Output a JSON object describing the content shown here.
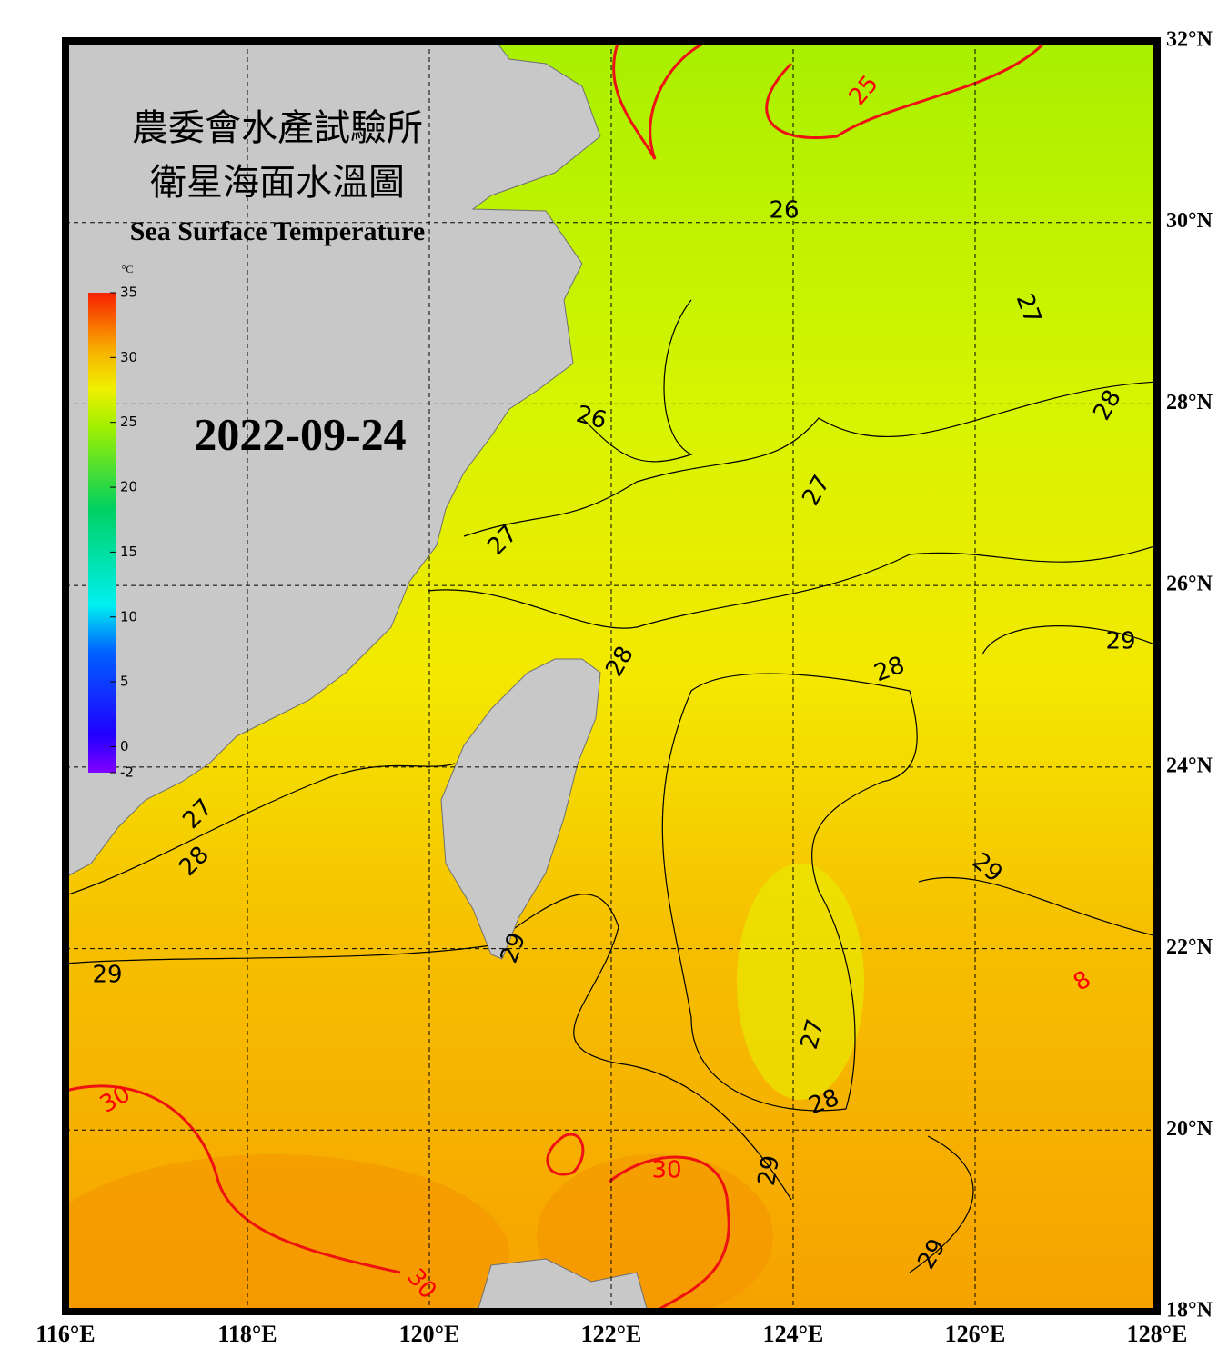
{
  "header": {
    "title_zh_1": "農委會水產試驗所",
    "title_zh_2": "衛星海面水溫圖",
    "title_en": "Sea Surface Temperature",
    "date": "2022-09-24"
  },
  "colorbar": {
    "unit": "°C",
    "lim": [
      -2,
      35
    ],
    "ticks": [
      35,
      30,
      25,
      20,
      15,
      10,
      5,
      0,
      -2
    ]
  },
  "map": {
    "xlim": [
      116,
      128
    ],
    "ylim": [
      18,
      32
    ],
    "xticks": [
      {
        "value": 116,
        "label": "116°E"
      },
      {
        "value": 118,
        "label": "118°E"
      },
      {
        "value": 120,
        "label": "120°E"
      },
      {
        "value": 122,
        "label": "122°E"
      },
      {
        "value": 124,
        "label": "124°E"
      },
      {
        "value": 126,
        "label": "126°E"
      },
      {
        "value": 128,
        "label": "128°E"
      }
    ],
    "yticks": [
      {
        "value": 32,
        "label": "32°N"
      },
      {
        "value": 30,
        "label": "30°N"
      },
      {
        "value": 28,
        "label": "28°N"
      },
      {
        "value": 26,
        "label": "26°N"
      },
      {
        "value": 24,
        "label": "24°N"
      },
      {
        "value": 22,
        "label": "22°N"
      },
      {
        "value": 20,
        "label": "20°N"
      },
      {
        "value": 18,
        "label": "18°N"
      }
    ],
    "contour_labels": [
      {
        "value": 25,
        "color": "red"
      },
      {
        "value": 26,
        "color": "black"
      },
      {
        "value": 27,
        "color": "black"
      },
      {
        "value": 26,
        "color": "black"
      },
      {
        "value": 28,
        "color": "black"
      },
      {
        "value": 27,
        "color": "black"
      },
      {
        "value": 27,
        "color": "black"
      },
      {
        "value": 29,
        "color": "black"
      },
      {
        "value": 28,
        "color": "black"
      },
      {
        "value": 28,
        "color": "black"
      },
      {
        "value": 27,
        "color": "black"
      },
      {
        "value": 28,
        "color": "black"
      },
      {
        "value": 29,
        "color": "black"
      },
      {
        "value": 29,
        "color": "black"
      },
      {
        "value": 29,
        "color": "black"
      },
      {
        "value": 27,
        "color": "black"
      },
      {
        "value": 28,
        "color": "black"
      },
      {
        "value": 30,
        "color": "red"
      },
      {
        "value": 30,
        "color": "red"
      },
      {
        "value": 29,
        "color": "black"
      },
      {
        "value": 30,
        "color": "red"
      },
      {
        "value": 29,
        "color": "black"
      },
      {
        "value": 8,
        "color": "red"
      }
    ]
  }
}
